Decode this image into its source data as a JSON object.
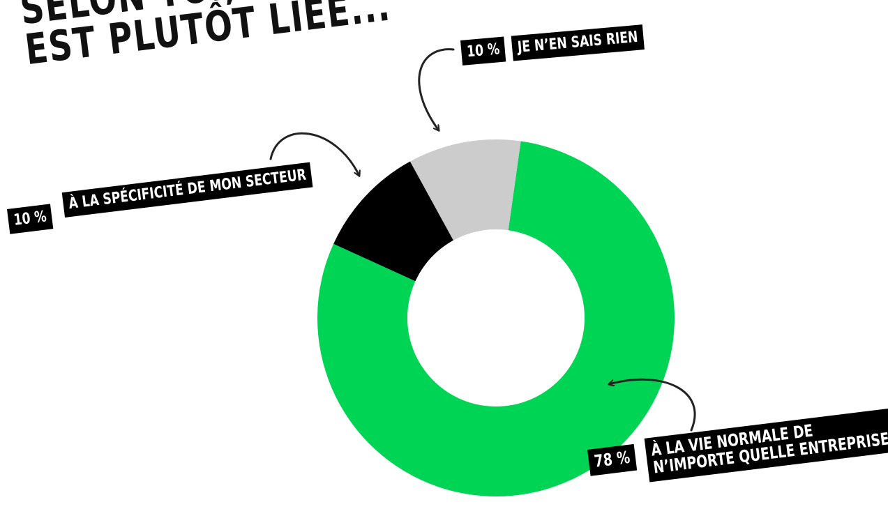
{
  "title": {
    "line1": "SELON TOI, LA CHARGE",
    "line2": "EST PLUTÔT LIÉE..."
  },
  "colors": {
    "green": "#00d455",
    "grey": "#cccccc",
    "black": "#000000",
    "arrow": "#222222"
  },
  "labels": {
    "je_nen_sais_rien": {
      "pct": "10 %",
      "text": "JE N’EN SAIS RIEN"
    },
    "specificite_secteur": {
      "pct": "10 %",
      "text": "À LA SPÉCIFICITÉ DE MON SECTEUR"
    },
    "vie_normale": {
      "pct": "78 %",
      "line1": "À LA VIE NORMALE DE",
      "line2": "N’IMPORTE QUELLE ENTREPRISE"
    }
  },
  "chart_data": {
    "type": "pie",
    "donut": true,
    "title": "SELON TOI, LA CHARGE EST PLUTÔT LIÉE...",
    "slices": [
      {
        "label": "À LA VIE NORMALE DE N’IMPORTE QUELLE ENTREPRISE",
        "value": 78,
        "color": "#00d455"
      },
      {
        "label": "À LA SPÉCIFICITÉ DE MON SECTEUR",
        "value": 10,
        "color": "#000000"
      },
      {
        "label": "JE N’EN SAIS RIEN",
        "value": 10,
        "color": "#cccccc"
      }
    ]
  }
}
